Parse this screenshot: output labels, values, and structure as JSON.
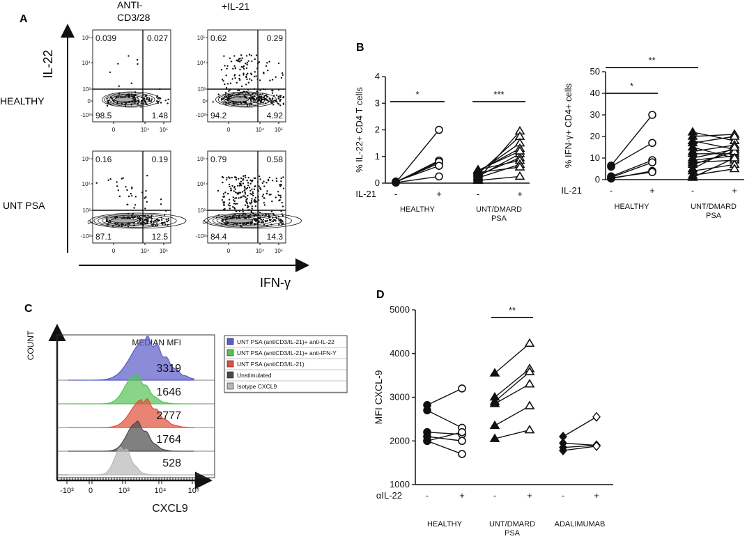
{
  "panel_labels": {
    "a": "A",
    "b": "B",
    "c": "C",
    "d": "D"
  },
  "panel_a": {
    "col_headers": [
      "ANTI-\nCD3/28",
      "+IL-21"
    ],
    "col_header_lines": [
      [
        "ANTI-",
        "CD3/28"
      ],
      [
        "+IL-21"
      ]
    ],
    "row_labels": [
      "HEALTHY",
      "UNT  PSA"
    ],
    "y_axis_label": "IL-22",
    "x_axis_label": "IFN-γ",
    "y_ticks": [
      "10⁵",
      "10⁴",
      "10³",
      "0",
      "-10³"
    ],
    "x_ticks": [
      "0",
      "10⁴",
      "10⁵"
    ],
    "quadrants": [
      {
        "ul": "0.039",
        "ur": "0.027",
        "ll": "98.5",
        "lr": "1.48"
      },
      {
        "ul": "0.62",
        "ur": "0.29",
        "ll": "94.2",
        "lr": "4.92"
      },
      {
        "ul": "0.16",
        "ur": "0.19",
        "ll": "87.1",
        "lr": "12.5"
      },
      {
        "ul": "0.79",
        "ur": "0.58",
        "ll": "84.4",
        "lr": "14.3"
      }
    ]
  },
  "chart_data": [
    {
      "type": "scatter",
      "id": "B1",
      "ylabel": "% IL-22+ CD4 T cells",
      "ylim": [
        0,
        4
      ],
      "yticks": [
        "0",
        "1",
        "2",
        "3",
        "4"
      ],
      "xrow_label": "IL-21",
      "xticks": [
        "-",
        "+",
        "-",
        "+"
      ],
      "groups": [
        "HEALTHY",
        "UNT/DMARD\nPSA"
      ],
      "group_lines": [
        [
          "HEALTHY"
        ],
        [
          "UNT/DMARD",
          "PSA"
        ]
      ],
      "significance": [
        {
          "label": "*",
          "from": 0,
          "to": 1
        },
        {
          "label": "***",
          "from": 2,
          "to": 3
        }
      ],
      "series": [
        {
          "name": "HEALTHY",
          "marker": "circle",
          "pairs": [
            [
              0.02,
              2.0
            ],
            [
              0.03,
              0.85
            ],
            [
              0.04,
              0.75
            ],
            [
              0.05,
              0.8
            ],
            [
              0.06,
              0.65
            ],
            [
              0.02,
              0.25
            ]
          ]
        },
        {
          "name": "UNT/DMARD PSA",
          "marker": "triangle",
          "pairs": [
            [
              0.15,
              1.95
            ],
            [
              0.35,
              1.75
            ],
            [
              0.4,
              1.5
            ],
            [
              0.45,
              1.3
            ],
            [
              0.25,
              1.1
            ],
            [
              0.3,
              0.95
            ],
            [
              0.5,
              0.85
            ],
            [
              0.2,
              0.7
            ],
            [
              0.4,
              0.6
            ],
            [
              0.1,
              0.25
            ],
            [
              0.48,
              1.2
            ]
          ]
        }
      ]
    },
    {
      "type": "scatter",
      "id": "B2",
      "ylabel": "% IFN-γ+ CD4+ cells",
      "ylim": [
        0,
        50
      ],
      "yticks": [
        "0",
        "10",
        "20",
        "30",
        "40",
        "50"
      ],
      "xrow_label": "IL-21",
      "xticks": [
        "-",
        "+",
        "-",
        "+"
      ],
      "groups": [
        "HEALTHY",
        "UNT/DMARD\nPSA"
      ],
      "group_lines": [
        [
          "HEALTHY"
        ],
        [
          "UNT/DMARD",
          "PSA"
        ]
      ],
      "significance": [
        {
          "label": "*",
          "from": 0,
          "to": 1
        },
        {
          "label": "**",
          "from": 0,
          "to": 2
        }
      ],
      "series": [
        {
          "name": "HEALTHY",
          "marker": "circle",
          "pairs": [
            [
              6.5,
              30
            ],
            [
              6,
              17
            ],
            [
              1.5,
              9
            ],
            [
              1,
              8
            ],
            [
              0.5,
              4
            ],
            [
              0.8,
              3.5
            ]
          ]
        },
        {
          "name": "UNT/DMARD PSA",
          "marker": "triangle",
          "pairs": [
            [
              22,
              18
            ],
            [
              20,
              21
            ],
            [
              18,
              14
            ],
            [
              17,
              20
            ],
            [
              15,
              10
            ],
            [
              13,
              16
            ],
            [
              12,
              12
            ],
            [
              10,
              14
            ],
            [
              9,
              11
            ],
            [
              8,
              9
            ],
            [
              7,
              13
            ],
            [
              5,
              15
            ],
            [
              4,
              7
            ],
            [
              2,
              5
            ],
            [
              1,
              10
            ]
          ]
        }
      ]
    },
    {
      "type": "area",
      "id": "C",
      "xlabel": "CXCL9",
      "ylabel": "COUNT",
      "header": "MEDIAN MFI",
      "xticks": [
        "-10³",
        "0",
        "10³",
        "10⁴",
        "10⁵"
      ],
      "tracks": [
        {
          "name": "UNT PSA (antiCD3/IL-21)+ anti-IL-22",
          "color": "#5a5ac8",
          "mfi": "3319",
          "peak": 3.45,
          "width": 0.45
        },
        {
          "name": "UNT PSA (antiCD3/IL-21)+ anti-IFN-Y",
          "color": "#55c255",
          "mfi": "1646",
          "peak": 3.1,
          "width": 0.3
        },
        {
          "name": "UNT PSA (antiCD3/IL-21)",
          "color": "#e0503a",
          "mfi": "2777",
          "peak": 3.35,
          "width": 0.35
        },
        {
          "name": "Unstimulated",
          "color": "#4a4a4a",
          "mfi": "1764",
          "peak": 3.15,
          "width": 0.28
        },
        {
          "name": "Isotype CXCL9",
          "color": "#b8b8b8",
          "mfi": "528",
          "peak": 2.7,
          "width": 0.22
        }
      ]
    },
    {
      "type": "scatter",
      "id": "D",
      "ylabel": "MFI CXCL-9",
      "ylim": [
        1000,
        5000
      ],
      "yticks": [
        "1000",
        "2000",
        "3000",
        "4000",
        "5000"
      ],
      "xrow_label": "αIL-22",
      "xticks": [
        "-",
        "+",
        "-",
        "+",
        "-",
        "+"
      ],
      "groups": [
        "HEALTHY",
        "UNT/DMARD\nPSA",
        "ADALIMUMAB"
      ],
      "group_lines": [
        [
          "HEALTHY"
        ],
        [
          "UNT/DMARD",
          "PSA"
        ],
        [
          "ADALIMUMAB"
        ]
      ],
      "significance": [
        {
          "label": "**",
          "from": 2,
          "to": 3
        }
      ],
      "series": [
        {
          "name": "HEALTHY",
          "marker": "circle",
          "pairs": [
            [
              2820,
              3200
            ],
            [
              2700,
              2300
            ],
            [
              2200,
              2150
            ],
            [
              2100,
              2000
            ],
            [
              2000,
              1700
            ],
            [
              2000,
              2200
            ]
          ]
        },
        {
          "name": "UNT/DMARD PSA",
          "marker": "triangle",
          "pairs": [
            [
              3550,
              4230
            ],
            [
              3000,
              3650
            ],
            [
              2900,
              3580
            ],
            [
              2850,
              3300
            ],
            [
              2350,
              2800
            ],
            [
              2050,
              2250
            ]
          ]
        },
        {
          "name": "ADALIMUMAB",
          "marker": "diamond",
          "pairs": [
            [
              2100,
              2550
            ],
            [
              1950,
              1900
            ],
            [
              1850,
              1900
            ],
            [
              1780,
              1880
            ]
          ]
        }
      ]
    }
  ]
}
